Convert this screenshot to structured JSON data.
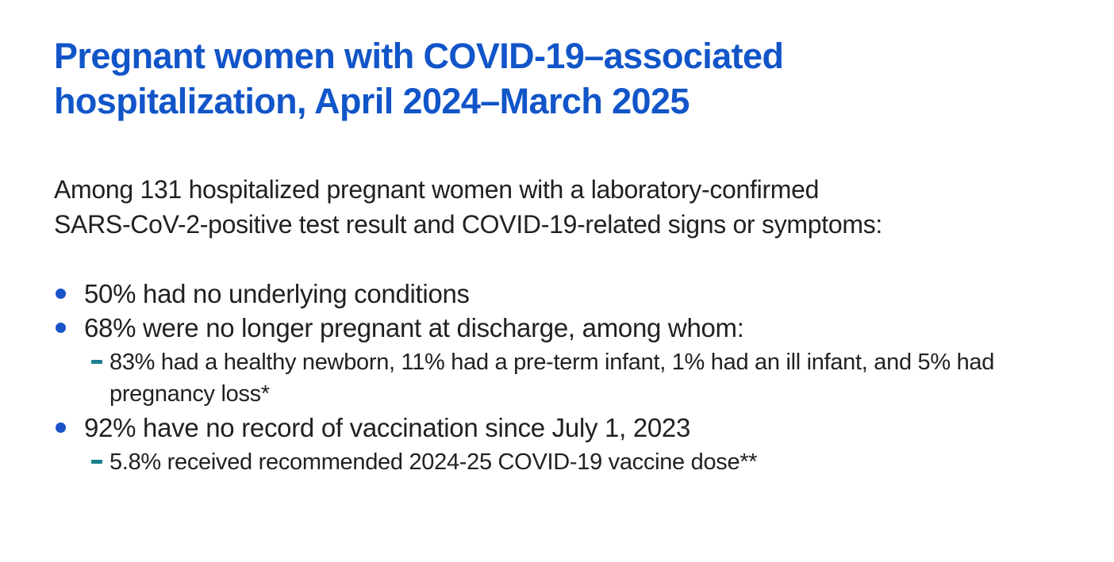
{
  "slide": {
    "title_lines": [
      "Pregnant women with COVID-19–associated",
      "hospitalization, April 2024–March 2025"
    ],
    "intro_lines": [
      "Among 131 hospitalized pregnant women with a laboratory-confirmed",
      "SARS-CoV-2-positive test result and COVID-19-related signs or symptoms:"
    ],
    "bullets": [
      {
        "text": "50% had no underlying conditions",
        "sub": []
      },
      {
        "text": "68% were no longer pregnant at discharge, among whom:",
        "sub": [
          "83% had a healthy newborn, 11% had a pre-term infant, 1% had an ill infant, and 5% had pregnancy loss*"
        ]
      },
      {
        "text": "92% have no record of vaccination since July 1, 2023",
        "sub": [
          "5.8% received recommended 2024-25 COVID-19 vaccine dose**"
        ]
      }
    ],
    "colors": {
      "title_blue": "#1155C8",
      "body_text": "#212121",
      "bullet_dot_blue": "#1A53C9",
      "sub_dash_teal": "#1A7F8E",
      "background": "#FFFFFF"
    }
  }
}
